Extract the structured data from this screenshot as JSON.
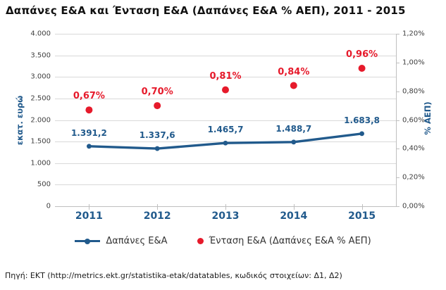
{
  "title": "Δαπάνες Ε&Α και Ένταση Ε&Α (Δαπάνες Ε&Α % ΑΕΠ), 2011 - 2015",
  "source": "Πηγή: ΕΚΤ (http://metrics.ekt.gr/statistika-etak/datatables, κωδικός στοιχείων: Δ1, Δ2)",
  "colors": {
    "line_blue": "#215a8c",
    "scatter_red": "#e61a2b",
    "gridline": "#d9d9d9",
    "axis": "#bfbfbf",
    "tick_text": "#404040"
  },
  "chart_data": {
    "type": "line",
    "title": "Δαπάνες Ε&Α και Ένταση Ε&Α (Δαπάνες Ε&Α % ΑΕΠ), 2011 - 2015",
    "categories": [
      "2011",
      "2012",
      "2013",
      "2014",
      "2015"
    ],
    "series": [
      {
        "name": "Δαπάνες Ε&Α",
        "type": "line",
        "axis": "left",
        "color": "#215a8c",
        "values": [
          1391.2,
          1337.6,
          1465.7,
          1488.7,
          1683.8
        ],
        "labels": [
          "1.391,2",
          "1.337,6",
          "1.465,7",
          "1.488,7",
          "1.683,8"
        ]
      },
      {
        "name": "Ένταση Ε&Α (Δαπάνες Ε&Α % ΑΕΠ)",
        "type": "scatter",
        "axis": "right",
        "color": "#e61a2b",
        "values": [
          0.67,
          0.7,
          0.81,
          0.84,
          0.96
        ],
        "labels": [
          "0,67%",
          "0,70%",
          "0,81%",
          "0,84%",
          "0,96%"
        ]
      }
    ],
    "left_axis": {
      "label": "εκατ. ευρώ",
      "min": 0,
      "max": 4000,
      "ticks": [
        "4.000",
        "3.500",
        "3.000",
        "2.500",
        "2.000",
        "1.500",
        "1.000",
        "500",
        "0"
      ]
    },
    "right_axis": {
      "label": "% ΑΕΠ)",
      "min": 0,
      "max": 1.2,
      "ticks": [
        "1,20%",
        "1,00%",
        "0,80%",
        "0,60%",
        "0,40%",
        "0,20%",
        "0,00%"
      ]
    },
    "grid": true,
    "legend_position": "bottom"
  }
}
